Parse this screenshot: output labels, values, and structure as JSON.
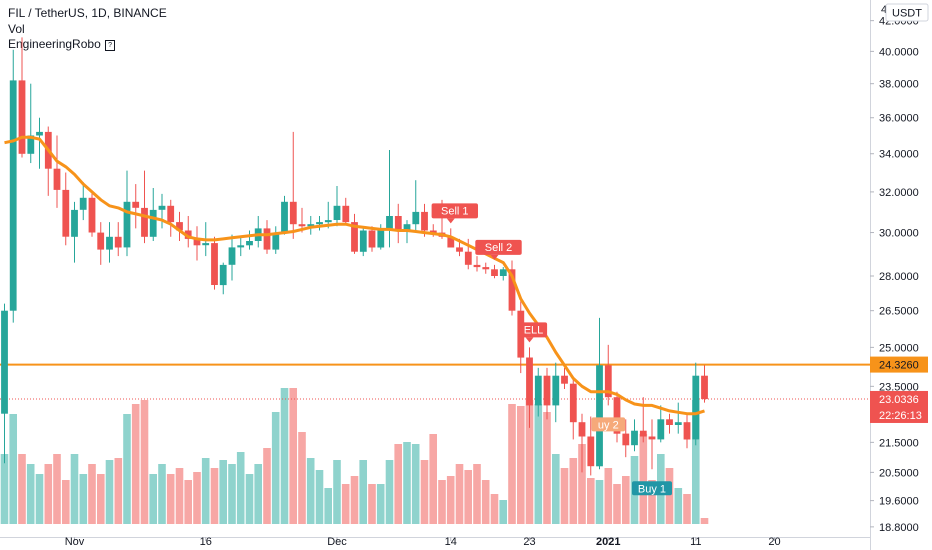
{
  "legend": {
    "symbol_line": "FIL / TetherUS, 1D, BINANCE",
    "volume_label": "Vol",
    "indicator_label": "EngineeringRobo",
    "indicator_icon": "help-box-icon"
  },
  "colors": {
    "up": "#26a69a",
    "down": "#ef5350",
    "up_volume": "#8fd3cd",
    "down_volume": "#f7a7a5",
    "ma": "#f7931a",
    "level": "#f7931a",
    "price": "#ef5350",
    "buy": "#2196a6"
  },
  "currency_button": "USDT",
  "chart_data": {
    "type": "candlestick",
    "title": "FIL / TetherUS, 1D, BINANCE",
    "ylim": [
      18.5,
      43.4
    ],
    "log_scale": true,
    "y_ticks": [
      "42.0000",
      "40.0000",
      "38.0000",
      "36.0000",
      "34.0000",
      "32.0000",
      "30.0000",
      "28.0000",
      "26.5000",
      "25.0000",
      "23.5000",
      "21.5000",
      "20.5000",
      "19.6000",
      "18.8000"
    ],
    "x_ticks": [
      {
        "index": 8,
        "label": "Nov"
      },
      {
        "index": 23,
        "label": "16"
      },
      {
        "index": 38,
        "label": "Dec"
      },
      {
        "index": 51,
        "label": "14"
      },
      {
        "index": 60,
        "label": "23"
      },
      {
        "index": 69,
        "label": "2021"
      },
      {
        "index": 79,
        "label": "11"
      },
      {
        "index": 88,
        "label": "20"
      }
    ],
    "candles": [
      [
        22.5,
        26.8,
        20.8,
        26.5
      ],
      [
        26.5,
        40.1,
        26.0,
        38.2
      ],
      [
        38.2,
        40.9,
        33.8,
        34.0
      ],
      [
        34.0,
        38.0,
        33.5,
        35.0
      ],
      [
        35.0,
        36.0,
        33.2,
        35.2
      ],
      [
        35.2,
        35.5,
        31.8,
        33.2
      ],
      [
        33.2,
        35.0,
        31.2,
        32.1
      ],
      [
        32.1,
        33.0,
        29.4,
        29.8
      ],
      [
        29.8,
        31.5,
        28.6,
        31.1
      ],
      [
        31.1,
        32.5,
        30.6,
        31.7
      ],
      [
        31.7,
        32.0,
        29.8,
        30.0
      ],
      [
        30.0,
        30.5,
        28.5,
        29.2
      ],
      [
        29.2,
        30.5,
        28.6,
        29.8
      ],
      [
        29.8,
        30.5,
        28.9,
        29.3
      ],
      [
        29.3,
        33.1,
        28.9,
        31.5
      ],
      [
        31.5,
        32.4,
        30.2,
        31.2
      ],
      [
        31.2,
        33.1,
        29.5,
        29.8
      ],
      [
        29.8,
        32.2,
        29.6,
        31.1
      ],
      [
        31.1,
        31.9,
        30.2,
        31.3
      ],
      [
        31.3,
        31.6,
        29.8,
        30.5
      ],
      [
        30.5,
        31.0,
        29.6,
        30.1
      ],
      [
        30.1,
        30.8,
        29.3,
        29.7
      ],
      [
        29.7,
        30.3,
        28.7,
        29.4
      ],
      [
        29.4,
        30.5,
        28.9,
        29.5
      ],
      [
        29.5,
        29.8,
        27.4,
        27.6
      ],
      [
        27.6,
        28.6,
        27.2,
        28.5
      ],
      [
        28.5,
        29.9,
        27.8,
        29.3
      ],
      [
        29.3,
        29.8,
        28.9,
        29.4
      ],
      [
        29.4,
        30.1,
        29.2,
        29.6
      ],
      [
        29.6,
        30.8,
        29.3,
        30.2
      ],
      [
        30.2,
        30.6,
        29.0,
        29.2
      ],
      [
        29.2,
        30.3,
        29.0,
        30.0
      ],
      [
        30.0,
        31.8,
        29.9,
        31.5
      ],
      [
        31.5,
        35.2,
        29.7,
        30.4
      ],
      [
        30.4,
        31.2,
        30.0,
        30.3
      ],
      [
        30.3,
        30.8,
        29.9,
        30.4
      ],
      [
        30.4,
        30.8,
        30.1,
        30.5
      ],
      [
        30.5,
        31.5,
        30.2,
        30.6
      ],
      [
        30.6,
        32.3,
        30.3,
        31.3
      ],
      [
        31.3,
        31.7,
        30.4,
        30.5
      ],
      [
        30.5,
        30.9,
        29.0,
        29.1
      ],
      [
        29.1,
        30.3,
        28.9,
        30.1
      ],
      [
        30.1,
        30.3,
        29.1,
        29.3
      ],
      [
        29.3,
        30.4,
        29.2,
        30.2
      ],
      [
        30.2,
        34.2,
        29.3,
        30.8
      ],
      [
        30.8,
        31.4,
        29.5,
        30.1
      ],
      [
        30.1,
        30.6,
        29.5,
        30.4
      ],
      [
        30.4,
        32.6,
        30.0,
        31.0
      ],
      [
        31.0,
        31.4,
        29.8,
        30.1
      ],
      [
        30.1,
        30.4,
        29.8,
        30.0
      ],
      [
        30.0,
        31.6,
        29.7,
        29.8
      ],
      [
        29.8,
        30.2,
        29.3,
        29.3
      ],
      [
        29.3,
        29.7,
        28.9,
        29.1
      ],
      [
        29.1,
        29.7,
        28.3,
        28.5
      ],
      [
        28.5,
        28.9,
        28.2,
        28.4
      ],
      [
        28.4,
        28.6,
        28.1,
        28.3
      ],
      [
        28.3,
        28.5,
        27.9,
        28.0
      ],
      [
        28.0,
        28.4,
        27.8,
        28.3
      ],
      [
        28.3,
        28.7,
        26.3,
        26.5
      ],
      [
        26.5,
        26.9,
        24.0,
        24.6
      ],
      [
        24.6,
        25.0,
        22.0,
        22.8
      ],
      [
        22.8,
        24.2,
        22.4,
        23.9
      ],
      [
        23.9,
        24.2,
        22.3,
        22.8
      ],
      [
        22.8,
        24.4,
        22.2,
        23.9
      ],
      [
        23.9,
        24.2,
        23.4,
        23.6
      ],
      [
        23.6,
        23.8,
        21.6,
        22.2
      ],
      [
        22.2,
        22.5,
        20.5,
        21.7
      ],
      [
        21.7,
        22.4,
        20.4,
        20.7
      ],
      [
        20.7,
        26.2,
        20.6,
        24.3
      ],
      [
        24.3,
        25.1,
        22.8,
        23.1
      ],
      [
        23.1,
        23.3,
        21.5,
        21.8
      ],
      [
        21.8,
        22.3,
        21.0,
        21.4
      ],
      [
        21.4,
        22.3,
        21.2,
        21.9
      ],
      [
        21.9,
        23.1,
        21.5,
        21.7
      ],
      [
        21.7,
        22.3,
        20.6,
        21.6
      ],
      [
        21.6,
        22.8,
        21.5,
        22.3
      ],
      [
        22.3,
        22.5,
        21.8,
        22.1
      ],
      [
        22.1,
        22.9,
        21.8,
        22.2
      ],
      [
        22.2,
        22.5,
        21.3,
        21.6
      ],
      [
        21.6,
        24.4,
        21.4,
        23.9
      ],
      [
        23.9,
        24.3,
        22.9,
        23.03
      ]
    ],
    "ma_values": [
      34.6,
      34.7,
      34.9,
      34.9,
      34.8,
      34.2,
      33.6,
      33.3,
      32.9,
      32.4,
      32.0,
      31.6,
      31.3,
      31.2,
      31.0,
      30.9,
      30.8,
      30.7,
      30.6,
      30.4,
      30.1,
      29.8,
      29.7,
      29.65,
      29.65,
      29.7,
      29.75,
      29.8,
      29.85,
      29.9,
      29.9,
      29.95,
      30.0,
      30.05,
      30.15,
      30.25,
      30.3,
      30.35,
      30.4,
      30.4,
      30.3,
      30.25,
      30.2,
      30.15,
      30.15,
      30.1,
      30.1,
      30.05,
      30.0,
      29.95,
      29.9,
      29.8,
      29.6,
      29.4,
      29.2,
      29.0,
      28.8,
      28.6,
      28.0,
      27.0,
      26.4,
      25.9,
      25.4,
      24.8,
      24.3,
      23.8,
      23.5,
      23.3,
      23.3,
      23.3,
      23.2,
      23.0,
      22.85,
      22.8,
      22.8,
      22.7,
      22.6,
      22.55,
      22.5,
      22.5,
      22.6
    ],
    "volumes": [
      35,
      55,
      35,
      30,
      25,
      30,
      35,
      22,
      35,
      25,
      30,
      25,
      32,
      33,
      55,
      60,
      62,
      25,
      30,
      25,
      28,
      22,
      26,
      33,
      28,
      32,
      30,
      36,
      25,
      30,
      38,
      56,
      68,
      68,
      46,
      33,
      27,
      18,
      32,
      20,
      24,
      32,
      20,
      20,
      32,
      40,
      41,
      40,
      32,
      45,
      22,
      24,
      30,
      27,
      30,
      22,
      15,
      12,
      60,
      59,
      62,
      60,
      56,
      35,
      28,
      33,
      40,
      23,
      22,
      28,
      20,
      24,
      34,
      45,
      22,
      35,
      28,
      18,
      15,
      62,
      3
    ],
    "volume_ylim": [
      0,
      100
    ],
    "horizontal_level": 24.326,
    "last_price": 23.0336,
    "labels": {
      "level_value": "24.3260",
      "last_price_value": "23.0336",
      "countdown": "22:26:13"
    },
    "signals": [
      {
        "index": 51,
        "text": "Sell 1",
        "side": "sell"
      },
      {
        "index": 56,
        "text": "Sell 2",
        "side": "sell"
      },
      {
        "index": 60,
        "text": "ELL",
        "side": "sell"
      },
      {
        "index": 69,
        "text": "uy 2",
        "side": "buy-partial"
      },
      {
        "index": 74,
        "text": "Buy 1",
        "side": "buy"
      }
    ],
    "top_partial_tick": "4"
  }
}
